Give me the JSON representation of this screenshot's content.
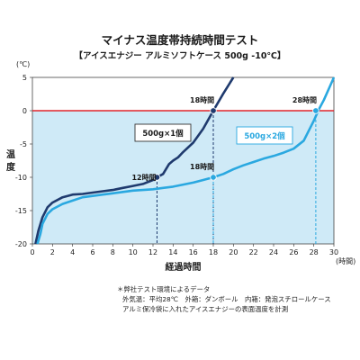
{
  "chart_data": {
    "type": "line",
    "title": "マイナス温度帯持続時間テスト",
    "subtitle": "【アイスエナジー アルミソフトケース 500g -10℃】",
    "xlabel": "経過時間",
    "ylabel": "温度",
    "x_unit": "(時間)",
    "y_unit": "(℃)",
    "xlim": [
      0,
      30
    ],
    "ylim": [
      -20,
      5
    ],
    "x_ticks": [
      0,
      2,
      4,
      6,
      8,
      10,
      12,
      14,
      16,
      18,
      20,
      22,
      24,
      26,
      28,
      30
    ],
    "y_ticks": [
      5,
      0,
      -5,
      -10,
      -15,
      -20
    ],
    "grid": false,
    "reference_line": {
      "y": 0,
      "color": "#e0242c"
    },
    "shaded_region": {
      "y_from": -20,
      "y_to": 0,
      "color": "#cfeaf7"
    },
    "series": [
      {
        "name": "500g×1個",
        "color": "#1f3a6e",
        "x": [
          0.3,
          0.6,
          1.0,
          1.5,
          2,
          3,
          4,
          5,
          6,
          7,
          8,
          9,
          10,
          11,
          12,
          12.4,
          13,
          13.6,
          14,
          14.5,
          15,
          16,
          17,
          18,
          19,
          20
        ],
        "y": [
          -20,
          -18,
          -16,
          -14.5,
          -13.8,
          -13,
          -12.6,
          -12.5,
          -12.3,
          -12.1,
          -11.9,
          -11.6,
          -11.3,
          -11,
          -10.4,
          -10,
          -9.5,
          -8,
          -7.5,
          -7,
          -6.2,
          -4.8,
          -2.7,
          0,
          2.6,
          5
        ]
      },
      {
        "name": "500g×2個",
        "color": "#2aa8e0",
        "x": [
          0.5,
          0.8,
          1.0,
          1.5,
          2,
          3,
          4,
          5,
          6,
          7,
          8,
          9,
          10,
          11,
          12,
          13,
          14,
          15,
          16,
          17,
          18,
          19,
          20,
          21,
          22,
          23,
          24,
          25,
          26,
          27,
          27.5,
          28,
          28.5,
          29,
          29.5,
          30
        ],
        "y": [
          -20,
          -18.5,
          -17,
          -15.5,
          -14.8,
          -14,
          -13.5,
          -13,
          -12.8,
          -12.6,
          -12.4,
          -12.2,
          -12,
          -11.9,
          -11.8,
          -11.6,
          -11.4,
          -11.1,
          -10.8,
          -10.4,
          -10,
          -9.5,
          -8.8,
          -8.2,
          -7.7,
          -7.2,
          -6.8,
          -6.3,
          -5.7,
          -4.5,
          -3,
          -1.5,
          0.2,
          1.6,
          3.3,
          5
        ]
      }
    ],
    "annotations": [
      {
        "text": "12時間",
        "x": 12.4,
        "y": -10,
        "series": 0
      },
      {
        "text": "18時間",
        "x": 18,
        "y": 0,
        "series": 0
      },
      {
        "text": "18時間",
        "x": 18,
        "y": -10,
        "series": 1
      },
      {
        "text": "28時間",
        "x": 28.2,
        "y": 0,
        "series": 1
      }
    ],
    "labels": [
      {
        "text": "500g×1個",
        "series": 0
      },
      {
        "text": "500g×2個",
        "series": 1
      }
    ]
  },
  "notes": [
    "＊弊社テスト環境によるデータ",
    "外気温：平均28℃　外箱：ダンボール　内箱：発泡スチロールケース",
    "アルミ保冷袋に入れたアイスエナジーの表面温度を計測"
  ]
}
